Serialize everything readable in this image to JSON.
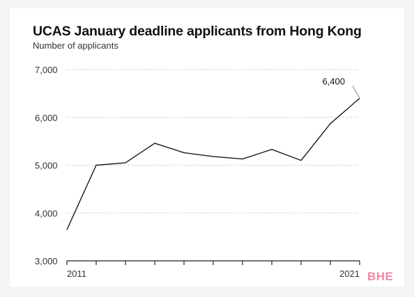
{
  "chart_data": {
    "type": "line",
    "title": "UCAS January deadline applicants from Hong Kong",
    "subtitle": "Number of applicants",
    "x": [
      2011,
      2012,
      2013,
      2014,
      2015,
      2016,
      2017,
      2018,
      2019,
      2020,
      2021
    ],
    "x_tick_labels": [
      "2011",
      "2021"
    ],
    "series": [
      {
        "values": [
          3650,
          5000,
          5050,
          5460,
          5260,
          5180,
          5130,
          5330,
          5100,
          5870,
          6400
        ]
      }
    ],
    "ylim": [
      3000,
      7000
    ],
    "y_ticks": [
      3000,
      4000,
      5000,
      6000,
      7000
    ],
    "y_tick_labels": [
      "3,000",
      "4,000",
      "5,000",
      "6,000",
      "7,000"
    ],
    "annotation": {
      "x": 2021,
      "label": "6,400"
    },
    "grid": true,
    "line_color": "#1a1a1a"
  },
  "watermark": {
    "text": "BHE",
    "color": "#f28aa4"
  }
}
